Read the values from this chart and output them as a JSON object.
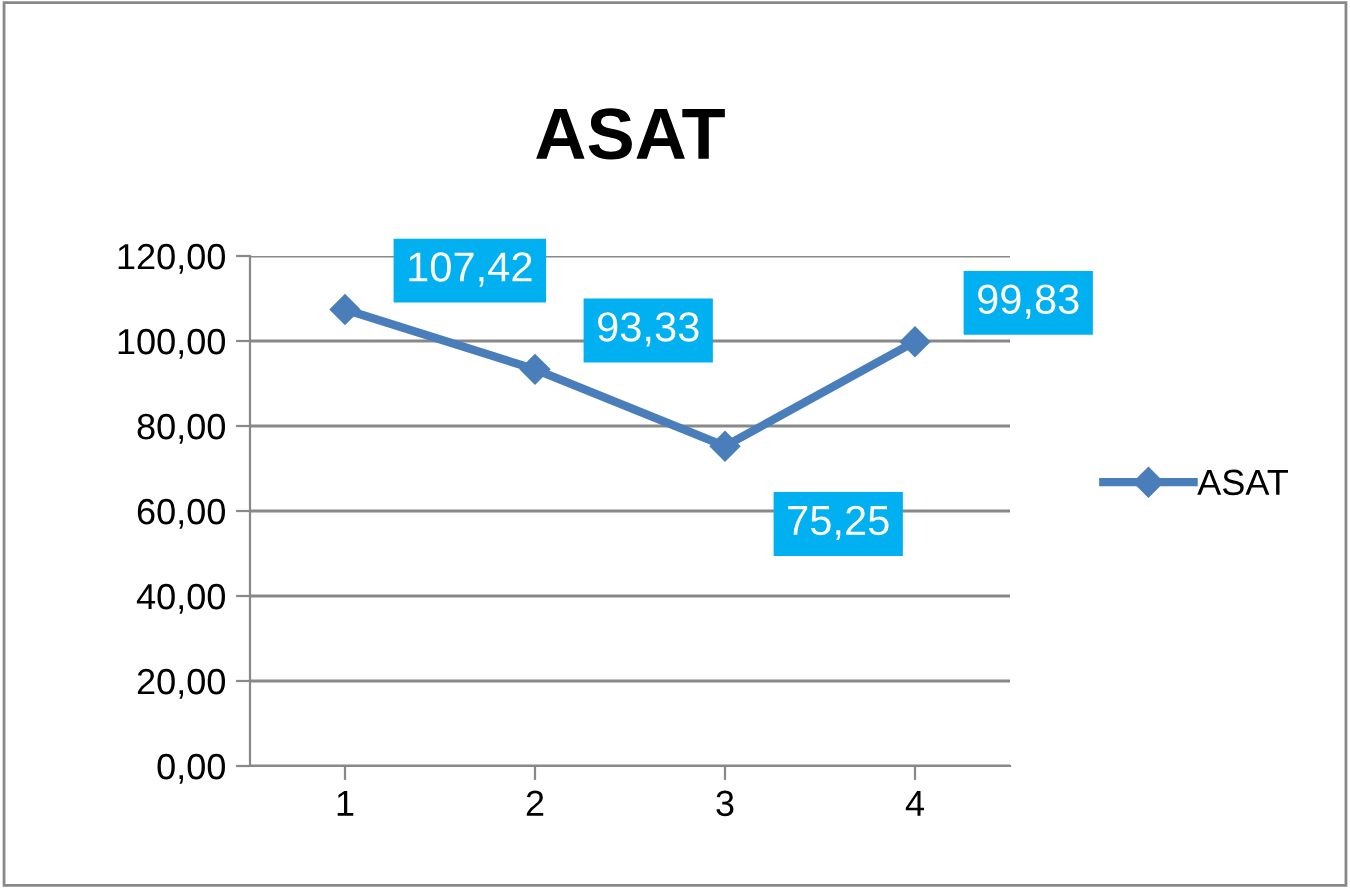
{
  "chart_data": {
    "type": "line",
    "title": "ASAT",
    "categories": [
      "1",
      "2",
      "3",
      "4"
    ],
    "series": [
      {
        "name": "ASAT",
        "color": "#4a7ebb",
        "values": [
          107.42,
          93.33,
          75.25,
          99.83
        ],
        "value_labels": [
          "107,42",
          "93,33",
          "75,25",
          "99,83"
        ]
      }
    ],
    "ylim": [
      0,
      120
    ],
    "yticks": [
      {
        "value": 0,
        "label": "0,00"
      },
      {
        "value": 20,
        "label": "20,00"
      },
      {
        "value": 40,
        "label": "40,00"
      },
      {
        "value": 60,
        "label": "60,00"
      },
      {
        "value": 80,
        "label": "80,00"
      },
      {
        "value": 100,
        "label": "100,00"
      },
      {
        "value": 120,
        "label": "120,00"
      }
    ],
    "grid": "y",
    "legend": "right",
    "marker": "diamond",
    "line_style": "solid"
  }
}
